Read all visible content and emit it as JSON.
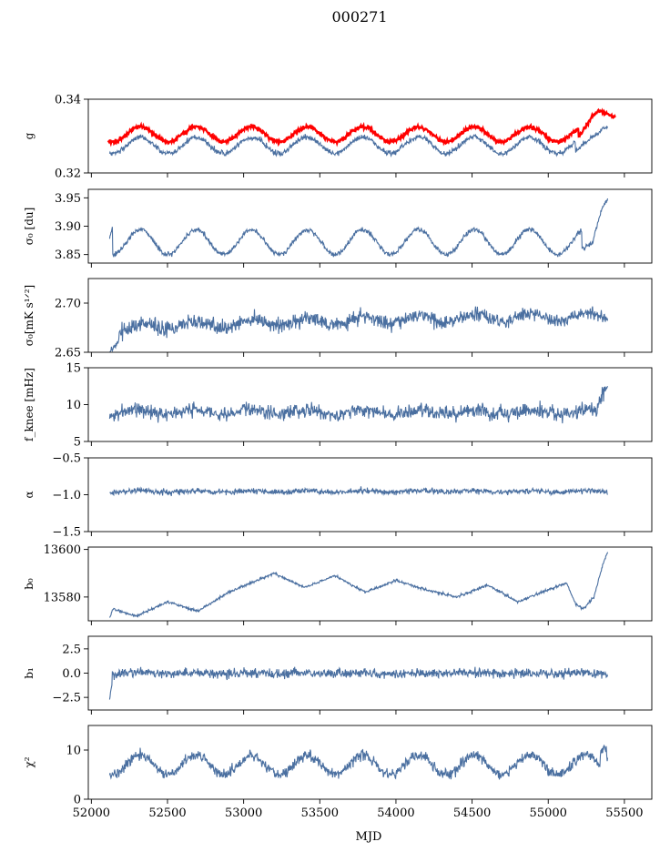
{
  "figure": {
    "title": "000271",
    "xlabel": "MJD"
  },
  "colors": {
    "series": "#4a6fa0",
    "highlight": "#ff0000"
  },
  "chart_data": [
    {
      "type": "line",
      "ylabel": "g",
      "xlim": [
        51980,
        55680
      ],
      "ylim": [
        0.32,
        0.34
      ],
      "yticks": [
        0.32,
        0.34
      ],
      "ytick_labels": [
        "0.32",
        "0.34"
      ],
      "series": [
        {
          "kind": "gmain",
          "values": {
            "start": 52120,
            "end": 55390,
            "base": 0.3275,
            "amp": 0.0022,
            "noise": 0.0007,
            "tail": [
              [
                55180,
                0.326
              ],
              [
                55300,
                0.33
              ],
              [
                55380,
                0.3325
              ],
              [
                55390,
                0.333
              ]
            ]
          }
        },
        {
          "kind": "gred",
          "color_key": "highlight",
          "values": {
            "start": 52110,
            "end": 55440,
            "base": 0.3305,
            "amp": 0.002,
            "noise": 0.0005,
            "tail": [
              [
                55200,
                0.3295
              ],
              [
                55280,
                0.335
              ],
              [
                55330,
                0.337
              ],
              [
                55440,
                0.335
              ]
            ]
          }
        }
      ]
    },
    {
      "type": "line",
      "ylabel": "σ₀ [du]",
      "xlim": [
        51980,
        55680
      ],
      "ylim": [
        3.835,
        3.965
      ],
      "yticks": [
        3.85,
        3.9,
        3.95
      ],
      "ytick_labels": [
        "3.85",
        "3.90",
        "3.95"
      ],
      "series": [
        {
          "kind": "periodic",
          "values": {
            "start": 52120,
            "end": 55390,
            "base": 3.872,
            "amp": 0.022,
            "noise": 0.004,
            "head": [
              [
                52120,
                3.878
              ],
              [
                52140,
                3.9
              ]
            ],
            "tail": [
              [
                55220,
                3.86
              ],
              [
                55290,
                3.87
              ],
              [
                55350,
                3.93
              ],
              [
                55390,
                3.95
              ]
            ]
          }
        }
      ]
    },
    {
      "type": "line",
      "ylabel": "σ₀[mK s¹ᐟ²]",
      "xlim": [
        51980,
        55680
      ],
      "ylim": [
        2.65,
        2.725
      ],
      "yticks": [
        2.65,
        2.7
      ],
      "ytick_labels": [
        "2.65",
        "2.70"
      ],
      "series": [
        {
          "kind": "trend",
          "values": {
            "start": 52120,
            "end": 55390,
            "base": 2.671,
            "slope_to": 2.687,
            "amp": 0.004,
            "noise": 0.007,
            "head": [
              [
                52120,
                2.65
              ],
              [
                52180,
                2.66
              ]
            ]
          }
        }
      ]
    },
    {
      "type": "line",
      "ylabel": "f_knee [mHz]",
      "xlim": [
        51980,
        55680
      ],
      "ylim": [
        5,
        15
      ],
      "yticks": [
        5,
        10,
        15
      ],
      "ytick_labels": [
        "5",
        "10",
        "15"
      ],
      "series": [
        {
          "kind": "noisy",
          "values": {
            "start": 52120,
            "end": 55390,
            "base": 9.0,
            "amp": 0.3,
            "noise": 0.9,
            "tail": [
              [
                55320,
                9.5
              ],
              [
                55360,
                11.5
              ],
              [
                55390,
                12.2
              ]
            ]
          }
        }
      ]
    },
    {
      "type": "line",
      "ylabel": "α",
      "xlim": [
        51980,
        55680
      ],
      "ylim": [
        -1.5,
        -0.5
      ],
      "yticks": [
        -1.5,
        -1.0,
        -0.5
      ],
      "ytick_labels": [
        "−1.5",
        "−1.0",
        "−0.5"
      ],
      "series": [
        {
          "kind": "noisy",
          "values": {
            "start": 52120,
            "end": 55390,
            "base": -0.955,
            "amp": 0.01,
            "noise": 0.035
          }
        }
      ]
    },
    {
      "type": "line",
      "ylabel": "b₀",
      "xlim": [
        51980,
        55680
      ],
      "ylim": [
        13570,
        13601
      ],
      "yticks": [
        13580,
        13600
      ],
      "ytick_labels": [
        "13580",
        "13600"
      ],
      "series": [
        {
          "kind": "b0",
          "values": {
            "start": 52120,
            "end": 55390,
            "noise": 0.5,
            "points": [
              [
                52120,
                13571
              ],
              [
                52140,
                13575
              ],
              [
                52300,
                13572
              ],
              [
                52500,
                13578
              ],
              [
                52700,
                13574
              ],
              [
                52900,
                13582
              ],
              [
                53200,
                13590
              ],
              [
                53400,
                13584
              ],
              [
                53600,
                13589
              ],
              [
                53800,
                13582
              ],
              [
                54000,
                13587
              ],
              [
                54200,
                13583
              ],
              [
                54400,
                13580
              ],
              [
                54600,
                13585
              ],
              [
                54800,
                13578
              ],
              [
                55000,
                13583
              ],
              [
                55120,
                13586
              ],
              [
                55180,
                13577
              ],
              [
                55230,
                13575
              ],
              [
                55300,
                13580
              ],
              [
                55360,
                13594
              ],
              [
                55390,
                13599
              ]
            ]
          }
        }
      ]
    },
    {
      "type": "line",
      "ylabel": "b₁",
      "xlim": [
        51980,
        55680
      ],
      "ylim": [
        -3.8,
        3.8
      ],
      "yticks": [
        -2.5,
        0.0,
        2.5
      ],
      "ytick_labels": [
        "−2.5",
        "0.0",
        "2.5"
      ],
      "series": [
        {
          "kind": "noisy",
          "values": {
            "start": 52120,
            "end": 55390,
            "base": 0.0,
            "amp": 0.05,
            "noise": 0.45,
            "head": [
              [
                52120,
                -2.8
              ],
              [
                52135,
                -1.0
              ]
            ]
          }
        }
      ]
    },
    {
      "type": "line",
      "ylabel": "χ²",
      "xlim": [
        51980,
        55680
      ],
      "ylim": [
        0,
        15
      ],
      "yticks": [
        0,
        10
      ],
      "ytick_labels": [
        "0",
        "10"
      ],
      "xticks": [
        52000,
        52500,
        53000,
        53500,
        54000,
        54500,
        55000,
        55500
      ],
      "xtick_labels": [
        "52000",
        "52500",
        "53000",
        "53500",
        "54000",
        "54500",
        "55000",
        "55500"
      ],
      "series": [
        {
          "kind": "periodic",
          "values": {
            "start": 52120,
            "end": 55390,
            "base": 7.0,
            "amp": 2.0,
            "noise": 1.0,
            "tail": [
              [
                55340,
                9.0
              ],
              [
                55370,
                11.0
              ],
              [
                55390,
                8.0
              ]
            ]
          }
        }
      ]
    }
  ]
}
